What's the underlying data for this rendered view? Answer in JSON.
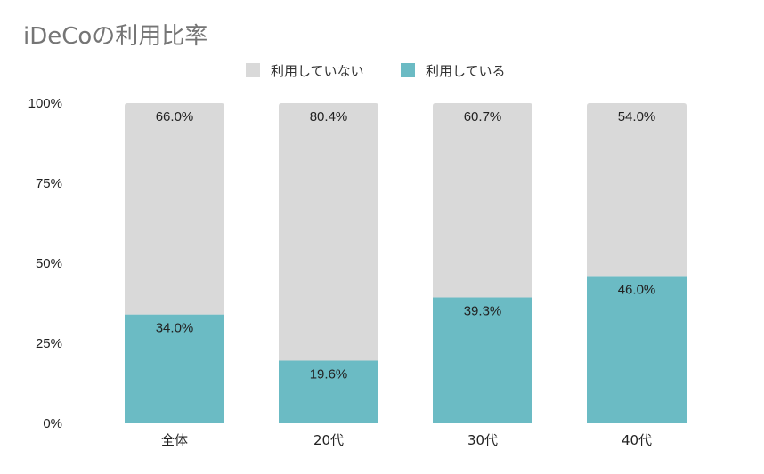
{
  "chart_data": {
    "type": "bar",
    "stacked": true,
    "title": "iDeCoの利用比率",
    "categories": [
      "全体",
      "20代",
      "30代",
      "40代"
    ],
    "series": [
      {
        "name": "利用している",
        "color": "#6bbbc4",
        "values": [
          34.0,
          19.6,
          39.3,
          46.0
        ],
        "labels": [
          "34.0%",
          "19.6%",
          "39.3%",
          "46.0%"
        ]
      },
      {
        "name": "利用していない",
        "color": "#d9d9d9",
        "values": [
          66.0,
          80.4,
          60.7,
          54.0
        ],
        "labels": [
          "66.0%",
          "80.4%",
          "60.7%",
          "54.0%"
        ]
      }
    ],
    "legend_order": [
      "利用していない",
      "利用している"
    ],
    "legend_position": "top-center",
    "ylim": [
      0,
      100
    ],
    "yticks": [
      0,
      25,
      50,
      75,
      100
    ],
    "ytick_labels": [
      "0%",
      "25%",
      "50%",
      "75%",
      "100%"
    ],
    "grid": false,
    "xlabel": "",
    "ylabel": ""
  }
}
